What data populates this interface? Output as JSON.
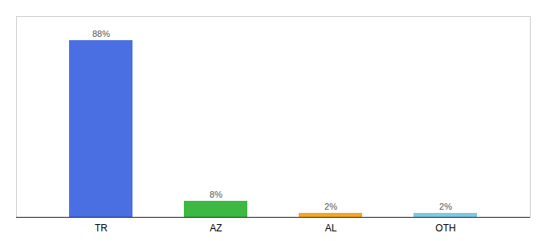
{
  "chart_data": {
    "type": "bar",
    "categories": [
      "TR",
      "AZ",
      "AL",
      "OTH"
    ],
    "values": [
      88,
      8,
      2,
      2
    ],
    "value_labels": [
      "88%",
      "8%",
      "2%",
      "2%"
    ],
    "colors": [
      "#4a6fe3",
      "#3db843",
      "#f5a623",
      "#7ec8e3"
    ],
    "data_labels": true,
    "ylim": [
      0,
      100
    ],
    "tick_labels": "x",
    "grid": false
  }
}
